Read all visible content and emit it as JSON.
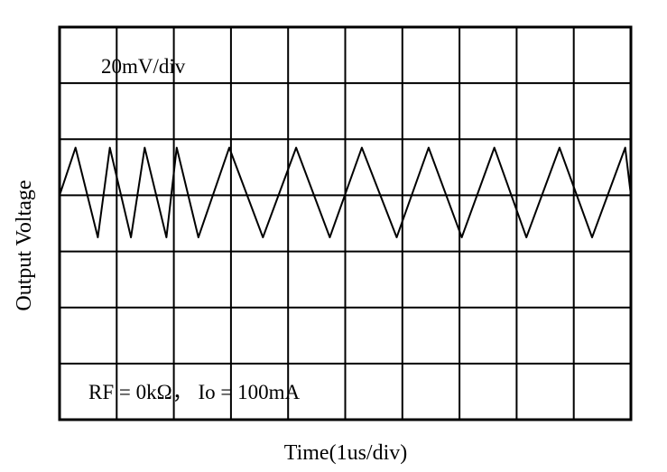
{
  "chart_data": {
    "type": "line",
    "title": "",
    "xlabel": "Time(1us/div)",
    "ylabel": "Output Voltage",
    "annotations": {
      "scale": "20mV/div",
      "condition": "RF = 0kΩ， Io = 100mA"
    },
    "grid": true,
    "x_divisions": 10,
    "y_divisions": 7,
    "xlim": [
      0,
      10
    ],
    "ylim": [
      -4,
      3
    ],
    "series": [
      {
        "x": [
          0.0,
          0.28,
          0.67,
          0.88,
          1.25,
          1.49,
          1.87,
          2.05,
          2.43,
          2.97,
          3.56,
          4.14,
          4.73,
          5.29,
          5.9,
          6.46,
          7.04,
          7.61,
          8.17,
          8.75,
          9.32,
          9.9,
          10.0
        ],
        "y": [
          0,
          0.85,
          -0.75,
          0.85,
          -0.75,
          0.85,
          -0.75,
          0.85,
          -0.75,
          0.85,
          -0.75,
          0.85,
          -0.75,
          0.85,
          -0.75,
          0.85,
          -0.75,
          0.85,
          -0.75,
          0.85,
          -0.75,
          0.85,
          0.0
        ]
      }
    ]
  }
}
